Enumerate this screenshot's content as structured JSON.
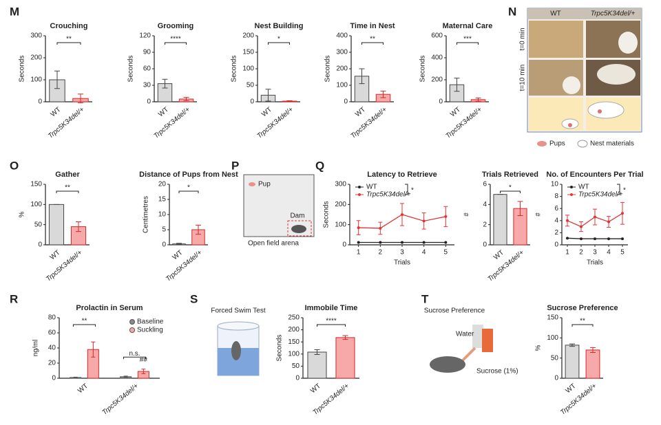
{
  "panel_labels": [
    "M",
    "N",
    "O",
    "P",
    "Q",
    "R",
    "S",
    "T"
  ],
  "illustrations": {
    "nest": {
      "columns": [
        "WT",
        "Trpc5K34del/+"
      ],
      "rows": [
        "t=0 min",
        "t=10 min"
      ],
      "legend": [
        "Pups",
        "Nest materials"
      ]
    },
    "arena": {
      "pup": "Pup",
      "dam": "Dam",
      "caption": "Open field arena"
    },
    "swim": {
      "caption": "Forced Swim Test"
    },
    "sucrose": {
      "caption": "Sucrose Preference",
      "water": "Water",
      "sucrose": "Sucrose (1%)"
    }
  },
  "chart_data": [
    {
      "type": "bar",
      "title": "Crouching",
      "ylabel": "Seconds",
      "categories": [
        "WT",
        "Trpc5K34del/+"
      ],
      "values": [
        100,
        15
      ],
      "errors": [
        40,
        20
      ],
      "colors": [
        "#d9d9d9",
        "#f7a8a8"
      ],
      "ylim": [
        0,
        300
      ],
      "yticks": [
        0,
        100,
        200,
        300
      ],
      "annotation": "**"
    },
    {
      "type": "bar",
      "title": "Grooming",
      "ylabel": "Seconds",
      "categories": [
        "WT",
        "Trpc5K34del/+"
      ],
      "values": [
        33,
        5
      ],
      "errors": [
        8,
        3
      ],
      "colors": [
        "#d9d9d9",
        "#f7a8a8"
      ],
      "ylim": [
        0,
        120
      ],
      "yticks": [
        0,
        30,
        60,
        90,
        120
      ],
      "annotation": "****"
    },
    {
      "type": "bar",
      "title": "Nest Building",
      "ylabel": "Seconds",
      "categories": [
        "WT",
        "Trpc5K34del/+"
      ],
      "values": [
        20,
        2
      ],
      "errors": [
        18,
        1
      ],
      "colors": [
        "#d9d9d9",
        "#f7a8a8"
      ],
      "ylim": [
        0,
        200
      ],
      "yticks": [
        0,
        50,
        100,
        150,
        200
      ],
      "annotation": "*"
    },
    {
      "type": "bar",
      "title": "Time in Nest",
      "ylabel": "Seconds",
      "categories": [
        "WT",
        "Trpc5K34del/+"
      ],
      "values": [
        155,
        45
      ],
      "errors": [
        45,
        20
      ],
      "colors": [
        "#d9d9d9",
        "#f7a8a8"
      ],
      "ylim": [
        0,
        400
      ],
      "yticks": [
        0,
        100,
        200,
        300,
        400
      ],
      "annotation": "**"
    },
    {
      "type": "bar",
      "title": "Maternal Care",
      "ylabel": "Seconds",
      "categories": [
        "WT",
        "Trpc5K34del/+"
      ],
      "values": [
        155,
        20
      ],
      "errors": [
        60,
        15
      ],
      "colors": [
        "#d9d9d9",
        "#f7a8a8"
      ],
      "ylim": [
        0,
        600
      ],
      "yticks": [
        0,
        200,
        400,
        600
      ],
      "annotation": "***"
    },
    {
      "type": "bar",
      "title": "Gather",
      "ylabel": "%",
      "categories": [
        "WT",
        "Trpc5K34del/+"
      ],
      "values": [
        100,
        45
      ],
      "errors": [
        0,
        12
      ],
      "colors": [
        "#d9d9d9",
        "#f7a8a8"
      ],
      "ylim": [
        0,
        150
      ],
      "yticks": [
        0,
        50,
        100,
        150
      ],
      "annotation": "**"
    },
    {
      "type": "bar",
      "title": "Distance of Pups from Nest",
      "ylabel": "Centimetres",
      "categories": [
        "WT",
        "Trpc5K34del/+"
      ],
      "values": [
        0.3,
        5
      ],
      "errors": [
        0.2,
        1.5
      ],
      "colors": [
        "#d9d9d9",
        "#f7a8a8"
      ],
      "ylim": [
        0,
        20
      ],
      "yticks": [
        0,
        5,
        10,
        15,
        20
      ],
      "annotation": "*"
    },
    {
      "type": "line",
      "title": "Latency to Retrieve",
      "ylabel": "Seconds",
      "xlabel": "Trials",
      "x": [
        1,
        2,
        3,
        4,
        5
      ],
      "xlim": [
        0.6,
        5.4
      ],
      "xticks": [
        1,
        2,
        3,
        4,
        5
      ],
      "ylim": [
        0,
        300
      ],
      "yticks": [
        0,
        100,
        200,
        300
      ],
      "annotation": "*",
      "series": [
        {
          "name": "WT",
          "color": "#222222",
          "values": [
            12,
            12,
            12,
            12,
            12
          ],
          "errors": [
            3,
            3,
            3,
            3,
            3
          ]
        },
        {
          "name": "Trpc5K34del/+",
          "color": "#e03535",
          "values": [
            85,
            82,
            150,
            118,
            140
          ],
          "errors": [
            35,
            30,
            55,
            40,
            50
          ]
        }
      ]
    },
    {
      "type": "bar",
      "title": "Trials Retrieved",
      "ylabel": "#",
      "categories": [
        "WT",
        "Trpc5K34del/+"
      ],
      "values": [
        5,
        3.6
      ],
      "errors": [
        0,
        0.7
      ],
      "colors": [
        "#d9d9d9",
        "#f7a8a8"
      ],
      "ylim": [
        0,
        6
      ],
      "yticks": [
        0,
        2,
        4,
        6
      ],
      "annotation": "*"
    },
    {
      "type": "line",
      "title": "No. of Encounters Per Trial",
      "ylabel": "#",
      "xlabel": "Trials",
      "x": [
        1,
        2,
        3,
        4,
        5
      ],
      "xlim": [
        0.6,
        5.4
      ],
      "xticks": [
        1,
        2,
        3,
        4,
        5
      ],
      "ylim": [
        0,
        10
      ],
      "yticks": [
        0,
        2,
        4,
        6,
        8,
        10
      ],
      "annotation": "*",
      "series": [
        {
          "name": "WT",
          "color": "#222222",
          "values": [
            1.1,
            1,
            1,
            1,
            1
          ],
          "errors": [
            0.1,
            0.1,
            0.1,
            0.1,
            0.1
          ]
        },
        {
          "name": "Trpc5K34del/+",
          "color": "#e03535",
          "values": [
            4,
            3,
            4.6,
            3.8,
            5.2
          ],
          "errors": [
            0.9,
            0.8,
            1.3,
            0.9,
            1.8
          ]
        }
      ]
    },
    {
      "type": "grouped_bar",
      "title": "Prolactin in Serum",
      "ylabel": "ng/ml",
      "categories": [
        "WT",
        "Trpc5K34del/+"
      ],
      "ylim": [
        0,
        80
      ],
      "yticks": [
        0,
        20,
        40,
        60,
        80
      ],
      "annotations": [
        "**",
        "n.s.",
        "##"
      ],
      "series": [
        {
          "name": "Baseline",
          "color": "#8a8a8a",
          "values": [
            1,
            2
          ],
          "errors": [
            0.5,
            0.8
          ]
        },
        {
          "name": "Suckling",
          "color": "#f7a8a8",
          "values": [
            38,
            9
          ],
          "errors": [
            10,
            3
          ]
        }
      ]
    },
    {
      "type": "bar",
      "title": "Immobile Time",
      "ylabel": "Seconds",
      "categories": [
        "WT",
        "Trpc5K34del/+"
      ],
      "values": [
        108,
        168
      ],
      "errors": [
        10,
        8
      ],
      "colors": [
        "#d9d9d9",
        "#f7a8a8"
      ],
      "ylim": [
        0,
        250
      ],
      "yticks": [
        0,
        50,
        100,
        150,
        200,
        250
      ],
      "annotation": "****"
    },
    {
      "type": "bar",
      "title": "Sucrose Preference",
      "ylabel": "%",
      "categories": [
        "WT",
        "Trpc5K34del/+"
      ],
      "values": [
        82,
        70
      ],
      "errors": [
        3,
        6
      ],
      "colors": [
        "#d9d9d9",
        "#f7a8a8"
      ],
      "ylim": [
        0,
        150
      ],
      "yticks": [
        0,
        50,
        100,
        150
      ],
      "annotation": "**"
    }
  ]
}
